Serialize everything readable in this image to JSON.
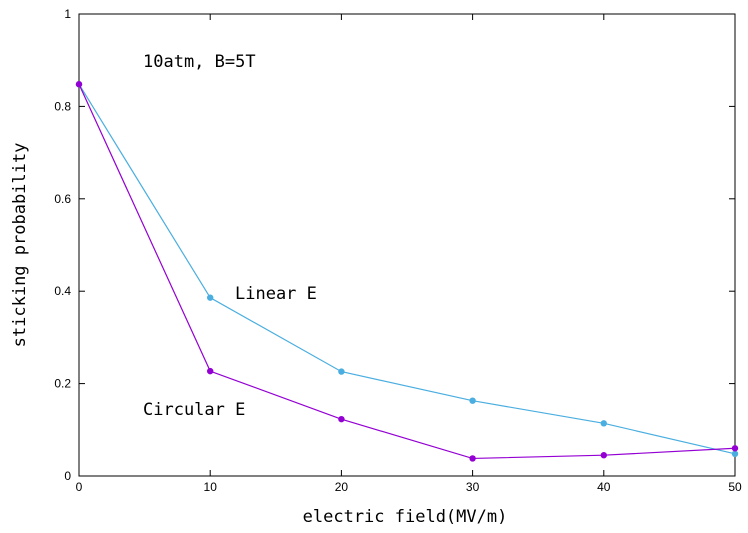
{
  "chart_data": {
    "type": "line",
    "title": "",
    "xlabel": "electric field(MV/m)",
    "ylabel": "sticking probability",
    "xlim": [
      0,
      50
    ],
    "ylim": [
      0,
      1
    ],
    "x_ticks": [
      "0",
      "10",
      "20",
      "30",
      "40",
      "50"
    ],
    "y_ticks": [
      "0",
      "0.2",
      "0.4",
      "0.6",
      "0.8",
      "1"
    ],
    "grid": false,
    "legend": "none",
    "annotations": [
      "10atm, B=5T",
      "Linear E",
      "Circular E"
    ],
    "x": [
      0,
      10,
      20,
      30,
      40,
      50
    ],
    "series": [
      {
        "name": "Linear E",
        "color": "#4aaee0",
        "values": [
          0.848,
          0.386,
          0.226,
          0.163,
          0.114,
          0.048
        ]
      },
      {
        "name": "Circular E",
        "color": "#9400d3",
        "values": [
          0.848,
          0.227,
          0.123,
          0.038,
          0.045,
          0.06
        ]
      }
    ]
  }
}
